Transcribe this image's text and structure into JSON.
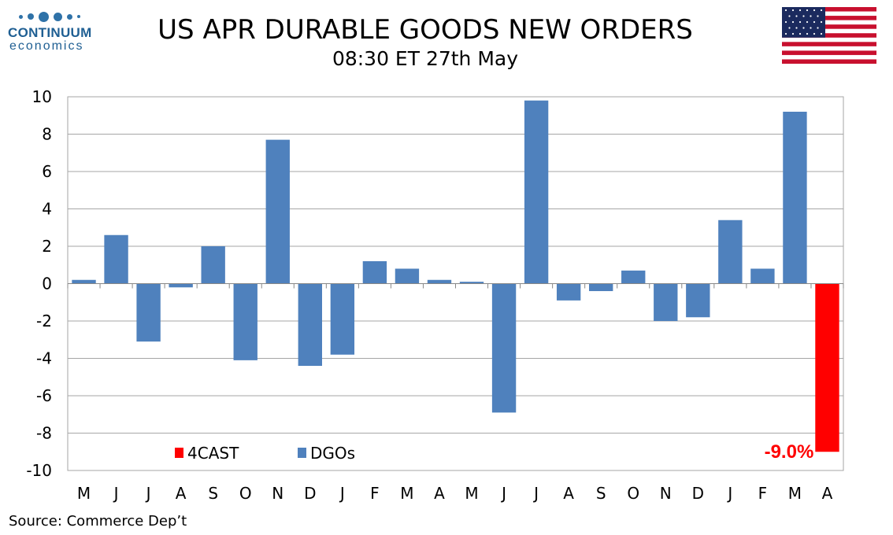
{
  "header": {
    "title": "US APR DURABLE GOODS NEW ORDERS",
    "subtitle": "08:30 ET 27th May"
  },
  "logo": {
    "name": "CONTINUUM",
    "sub": "economics"
  },
  "footer": {
    "source": "Source: Commerce Dep’t"
  },
  "colors": {
    "dgo": "#4f81bd",
    "forecast": "#ff0000",
    "brand": "#1f5f93"
  },
  "chart_data": {
    "type": "bar",
    "categories": [
      "M",
      "J",
      "J",
      "A",
      "S",
      "O",
      "N",
      "D",
      "J",
      "F",
      "M",
      "A",
      "M",
      "J",
      "J",
      "A",
      "S",
      "O",
      "N",
      "D",
      "J",
      "F",
      "M",
      "A"
    ],
    "series": [
      {
        "name": "DGOs",
        "values": [
          0.2,
          2.6,
          -3.1,
          -0.2,
          2.0,
          -4.1,
          7.7,
          -4.4,
          -3.8,
          1.2,
          0.8,
          0.2,
          0.1,
          -6.9,
          9.8,
          -0.9,
          -0.4,
          0.7,
          -2.0,
          -1.8,
          3.4,
          0.8,
          9.2,
          null
        ]
      },
      {
        "name": "4CAST",
        "values": [
          null,
          null,
          null,
          null,
          null,
          null,
          null,
          null,
          null,
          null,
          null,
          null,
          null,
          null,
          null,
          null,
          null,
          null,
          null,
          null,
          null,
          null,
          null,
          -9.0
        ]
      }
    ],
    "ylim": [
      -10,
      10
    ],
    "yticks": [
      10,
      8,
      6,
      4,
      2,
      0,
      -2,
      -4,
      -6,
      -8,
      -10
    ],
    "grid": true,
    "legend": {
      "placement": "bottom-left",
      "entries": [
        "4CAST",
        "DGOs"
      ]
    },
    "annotation": {
      "text": "-9.0%",
      "category_index": 23
    }
  }
}
